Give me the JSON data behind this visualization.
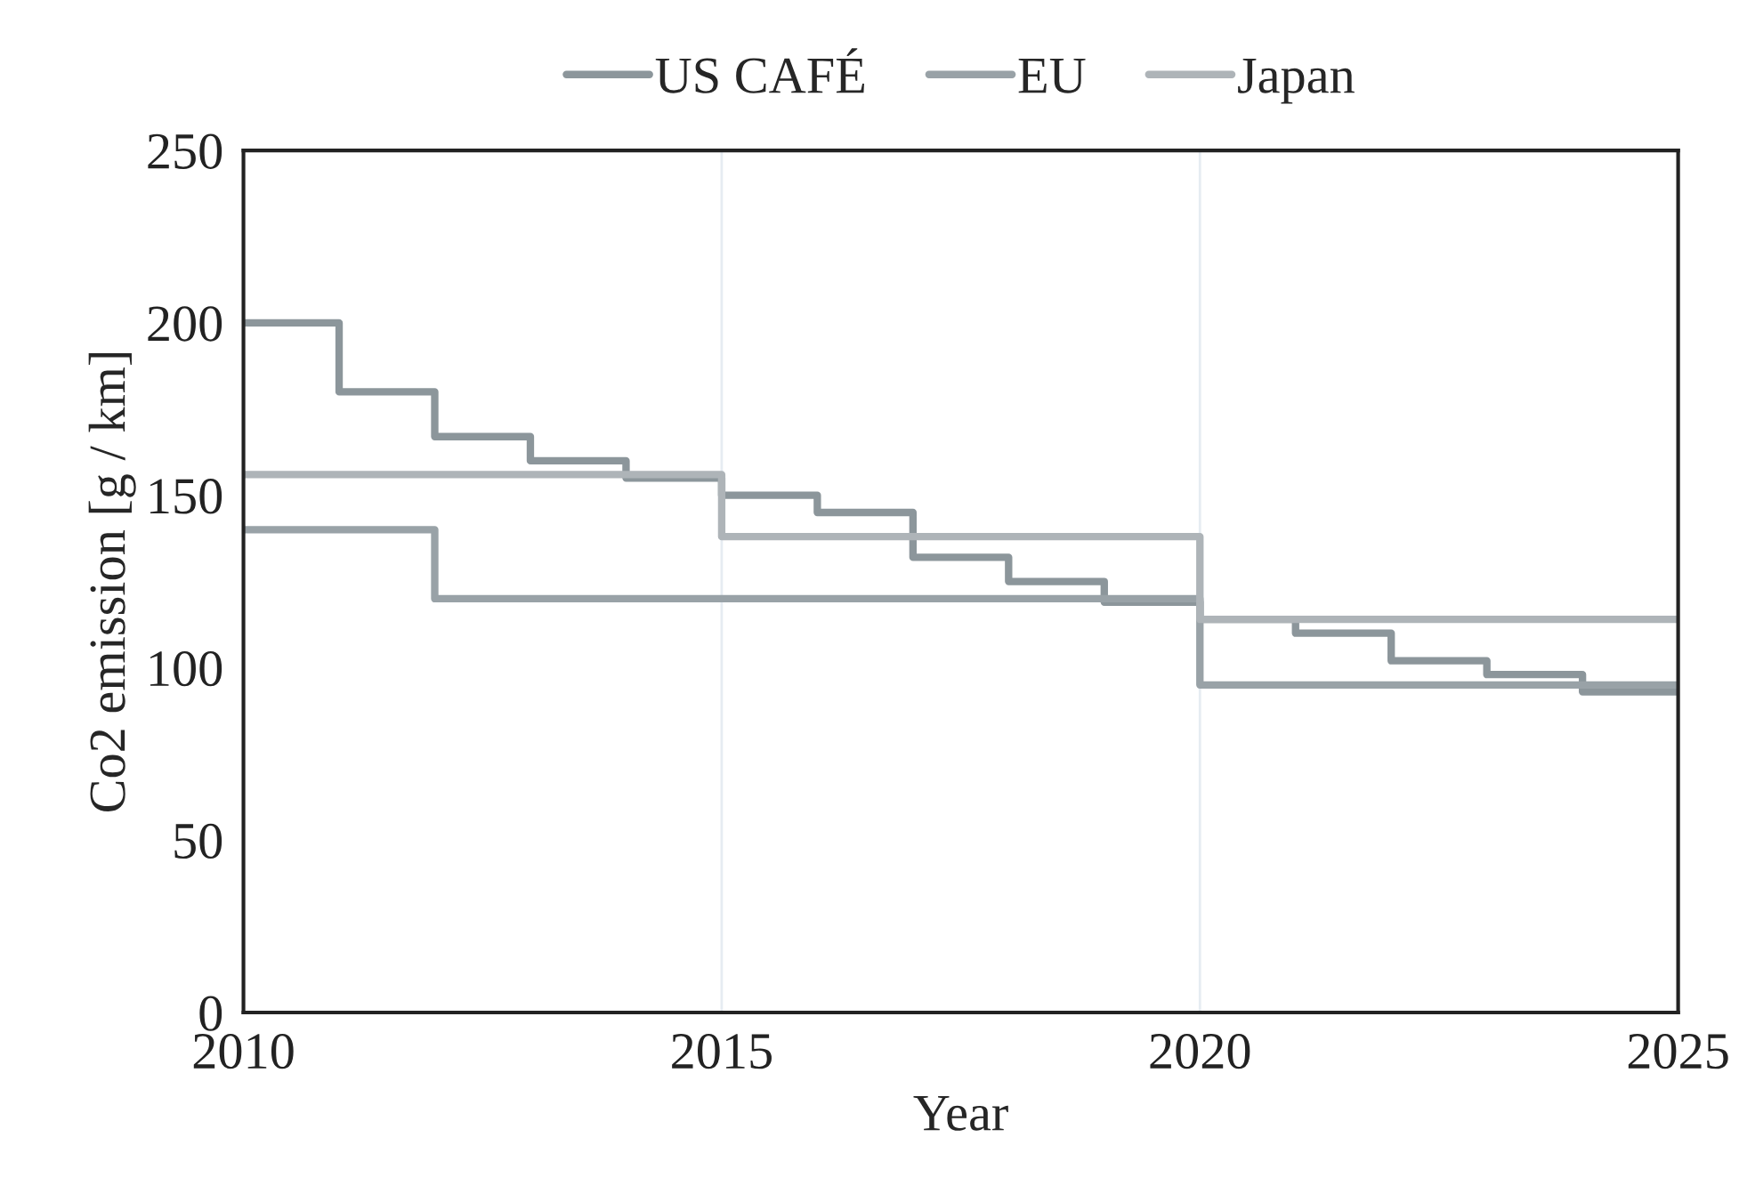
{
  "chart_data": {
    "type": "step",
    "xlabel": "Year",
    "ylabel": "Co2 emission [g / km]",
    "series": [
      {
        "name": "US CAFÉ",
        "color": "#8c969b",
        "x": [
          2010,
          2011,
          2012,
          2013,
          2014,
          2015,
          2016,
          2017,
          2018,
          2019,
          2020,
          2021,
          2022,
          2023,
          2024,
          2025
        ],
        "values": [
          200,
          180,
          167,
          160,
          155,
          150,
          145,
          132,
          125,
          119,
          114,
          110,
          102,
          98,
          93,
          93
        ]
      },
      {
        "name": "EU",
        "color": "#99a2a7",
        "x": [
          2010,
          2012,
          2020,
          2025
        ],
        "values": [
          140,
          120,
          95,
          95
        ]
      },
      {
        "name": "Japan",
        "color": "#aeb4b8",
        "x": [
          2010,
          2015,
          2020,
          2025
        ],
        "values": [
          156,
          138,
          114,
          114
        ]
      }
    ],
    "xlim": [
      2010,
      2025
    ],
    "xticks": [
      2010,
      2015,
      2020,
      2025
    ],
    "ylim": [
      0,
      250
    ],
    "yticks": [
      0,
      50,
      100,
      150,
      200,
      250
    ],
    "grid": "x",
    "legend": "top",
    "marker": "none",
    "line_style": "solid"
  }
}
